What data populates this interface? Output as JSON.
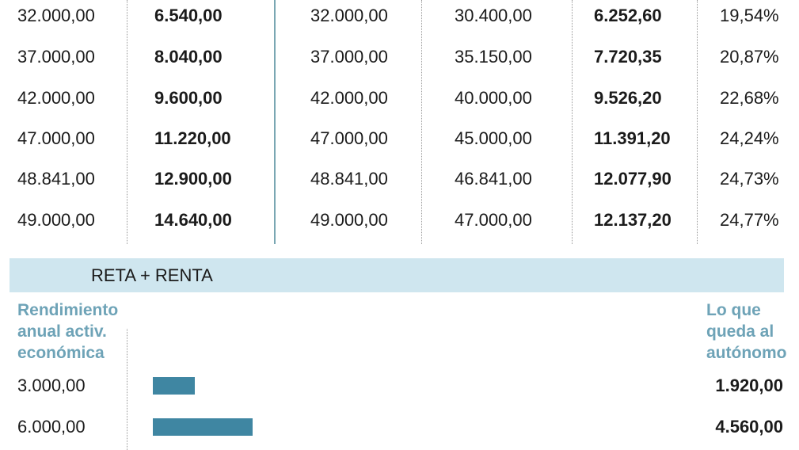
{
  "top_table": {
    "rows": [
      [
        "32.000,00",
        "6.540,00",
        "32.000,00",
        "30.400,00",
        "6.252,60",
        "19,54%"
      ],
      [
        "37.000,00",
        "8.040,00",
        "37.000,00",
        "35.150,00",
        "7.720,35",
        "20,87%"
      ],
      [
        "42.000,00",
        "9.600,00",
        "42.000,00",
        "40.000,00",
        "9.526,20",
        "22,68%"
      ],
      [
        "47.000,00",
        "11.220,00",
        "47.000,00",
        "45.000,00",
        "11.391,20",
        "24,24%"
      ],
      [
        "48.841,00",
        "12.900,00",
        "48.841,00",
        "46.841,00",
        "12.077,90",
        "24,73%"
      ],
      [
        "49.000,00",
        "14.640,00",
        "49.000,00",
        "47.000,00",
        "12.137,20",
        "24,77%"
      ]
    ]
  },
  "section": {
    "title": "RETA + RENTA",
    "band_color": "#cfe6ef"
  },
  "chart_data": {
    "type": "bar",
    "orientation": "horizontal",
    "x_header": "Rendimiento anual activ. económica",
    "value_header": "Lo que queda al autónomo",
    "categories": [
      "3.000,00",
      "6.000,00"
    ],
    "values": [
      1920.0,
      4560.0
    ],
    "value_labels": [
      "1.920,00",
      "4.560,00"
    ],
    "bar_color": "#3f86a2",
    "header_color": "#6ea3b7"
  }
}
